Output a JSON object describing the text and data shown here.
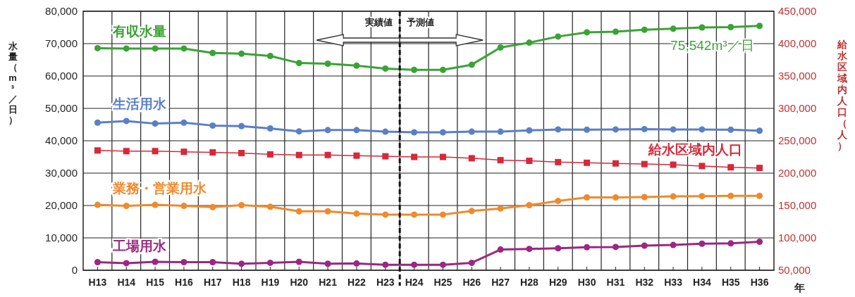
{
  "chart_data": {
    "type": "line",
    "categories": [
      "H13",
      "H14",
      "H15",
      "H16",
      "H17",
      "H18",
      "H19",
      "H20",
      "H21",
      "H22",
      "H23",
      "H24",
      "H25",
      "H26",
      "H27",
      "H28",
      "H29",
      "H30",
      "H31",
      "H32",
      "H33",
      "H34",
      "H35",
      "H36"
    ],
    "ylim": [
      0,
      80000
    ],
    "yticks": [
      {
        "value": 0,
        "label": "0"
      },
      {
        "value": 10000,
        "label": "10,000"
      },
      {
        "value": 20000,
        "label": "20,000"
      },
      {
        "value": 30000,
        "label": "30,000"
      },
      {
        "value": 40000,
        "label": "40,000"
      },
      {
        "value": 50000,
        "label": "50,000"
      },
      {
        "value": 60000,
        "label": "60,000"
      },
      {
        "value": 70000,
        "label": "70,000"
      },
      {
        "value": 80000,
        "label": "80,000"
      }
    ],
    "y2lim": [
      50000,
      450000
    ],
    "y2ticks": [
      {
        "value": 50000,
        "label": "50,000"
      },
      {
        "value": 100000,
        "label": "100,000"
      },
      {
        "value": 150000,
        "label": "150,000"
      },
      {
        "value": 200000,
        "label": "200,000"
      },
      {
        "value": 250000,
        "label": "250,000"
      },
      {
        "value": 300000,
        "label": "300,000"
      },
      {
        "value": 350000,
        "label": "350,000"
      },
      {
        "value": 400000,
        "label": "400,000"
      },
      {
        "value": 450000,
        "label": "450,000"
      }
    ],
    "xlabel": "年",
    "ylabel": "水量（m³／日）",
    "y2label": "給水区域内人口（人）",
    "grid": true,
    "line_style": "solid",
    "series": [
      {
        "name": "有収水量",
        "color": "#3aa335",
        "marker": "circle",
        "values": [
          68600,
          68500,
          68500,
          68500,
          67100,
          66900,
          66200,
          64000,
          63800,
          63200,
          62300,
          61900,
          61900,
          63500,
          68800,
          70300,
          72200,
          73500,
          73700,
          74300,
          74600,
          75000,
          75100,
          75500
        ]
      },
      {
        "name": "生活用水",
        "color": "#5b7fc7",
        "marker": "circle",
        "values": [
          45600,
          46100,
          45300,
          45600,
          44700,
          44500,
          43800,
          42900,
          43300,
          43300,
          42800,
          42600,
          42600,
          42800,
          42800,
          43200,
          43500,
          43400,
          43500,
          43600,
          43500,
          43500,
          43400,
          43100
        ]
      },
      {
        "name": "給水区域内人口",
        "color": "#d7283a",
        "marker": "square",
        "axis": "y2",
        "values": [
          235000,
          234000,
          234000,
          233000,
          232000,
          231000,
          229000,
          228000,
          228000,
          227000,
          226000,
          225000,
          225000,
          223000,
          220000,
          219000,
          217000,
          216000,
          215000,
          214000,
          213000,
          211000,
          209000,
          208000
        ]
      },
      {
        "name": "業務・営業用水",
        "color": "#ef8a2c",
        "marker": "circle",
        "values": [
          20200,
          19900,
          20200,
          19900,
          19500,
          20100,
          19600,
          18200,
          18200,
          17500,
          17200,
          17200,
          17200,
          18300,
          19100,
          20100,
          21400,
          22500,
          22500,
          22600,
          22800,
          22900,
          23000,
          23000
        ]
      },
      {
        "name": "工場用水",
        "color": "#9b2782",
        "marker": "circle",
        "values": [
          2500,
          2200,
          2600,
          2500,
          2500,
          2000,
          2300,
          2600,
          2000,
          2100,
          1700,
          1700,
          1700,
          2300,
          6400,
          6600,
          6800,
          7100,
          7200,
          7600,
          7800,
          8200,
          8300,
          8800
        ]
      }
    ],
    "ref_lines": [
      {
        "axis": "x",
        "value": "H24",
        "color": "#111111",
        "line_style": "dashed"
      }
    ],
    "annotations": [
      "実績値",
      "予測値",
      {
        "text": "75,542m³／日",
        "x": "H36",
        "y": 75542
      }
    ]
  }
}
